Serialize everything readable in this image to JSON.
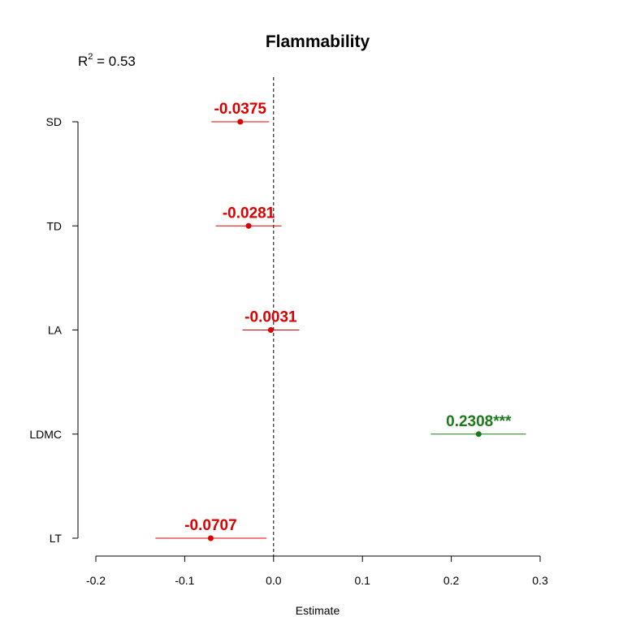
{
  "chart_data": {
    "type": "scatter",
    "subtype": "coefficient-plot",
    "title": "Flammability",
    "r2": {
      "label": "R",
      "superscript": "2",
      "value_text": " = 0.53",
      "value": 0.53
    },
    "xlabel": "Estimate",
    "ylabel": "",
    "xlim": [
      -0.2,
      0.3
    ],
    "x_ticks": [
      -0.2,
      -0.1,
      0.0,
      0.1,
      0.2,
      0.3
    ],
    "x_tick_labels": [
      "-0.2",
      "-0.1",
      "0.0",
      "0.1",
      "0.2",
      "0.3"
    ],
    "reference_line": {
      "x": 0,
      "style": "dashed"
    },
    "grid": false,
    "categories": [
      "SD",
      "TD",
      "LA",
      "LDMC",
      "LT"
    ],
    "series": [
      {
        "points": [
          {
            "category": "SD",
            "estimate": -0.0375,
            "ci_low": -0.07,
            "ci_high": -0.005,
            "label": "-0.0375",
            "color": "#dd0000"
          },
          {
            "category": "TD",
            "estimate": -0.0281,
            "ci_low": -0.065,
            "ci_high": 0.009,
            "label": "-0.0281",
            "color": "#dd0000"
          },
          {
            "category": "LA",
            "estimate": -0.0031,
            "ci_low": -0.035,
            "ci_high": 0.029,
            "label": "-0.0031",
            "color": "#dd0000"
          },
          {
            "category": "LDMC",
            "estimate": 0.2308,
            "ci_low": 0.177,
            "ci_high": 0.284,
            "label": "0.2308***",
            "color": "#1a7a1a"
          },
          {
            "category": "LT",
            "estimate": -0.0707,
            "ci_low": -0.133,
            "ci_high": -0.008,
            "label": "-0.0707",
            "color": "#dd0000"
          }
        ]
      }
    ],
    "colors": {
      "negative": "#dd0000",
      "positive": "#1a7a1a",
      "axis": "#000000"
    }
  }
}
